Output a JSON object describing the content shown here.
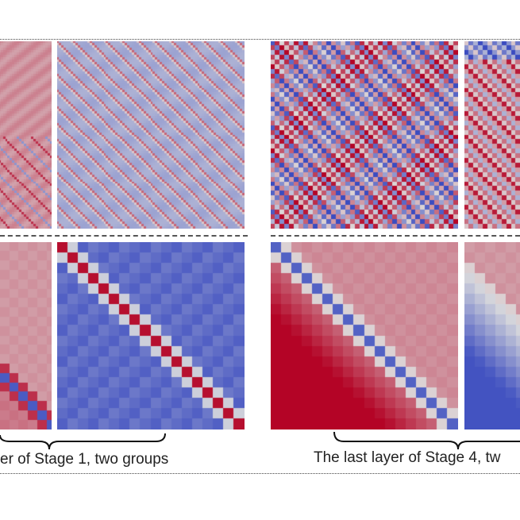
{
  "captions": {
    "left": "er of Stage 1, two groups",
    "right": "The last layer of Stage 4, tw"
  },
  "colors": {
    "cool": "#3b4cc0",
    "neutral": "#dddddd",
    "warm": "#b40426"
  }
}
